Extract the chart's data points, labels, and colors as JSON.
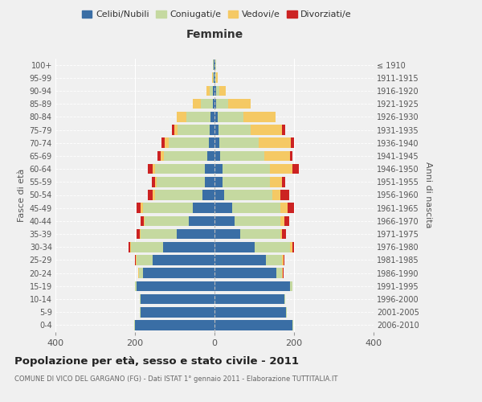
{
  "age_groups": [
    "0-4",
    "5-9",
    "10-14",
    "15-19",
    "20-24",
    "25-29",
    "30-34",
    "35-39",
    "40-44",
    "45-49",
    "50-54",
    "55-59",
    "60-64",
    "65-69",
    "70-74",
    "75-79",
    "80-84",
    "85-89",
    "90-94",
    "95-99",
    "100+"
  ],
  "birth_years": [
    "2006-2010",
    "2001-2005",
    "1996-2000",
    "1991-1995",
    "1986-1990",
    "1981-1985",
    "1976-1980",
    "1971-1975",
    "1966-1970",
    "1961-1965",
    "1956-1960",
    "1951-1955",
    "1946-1950",
    "1941-1945",
    "1936-1940",
    "1931-1935",
    "1926-1930",
    "1921-1925",
    "1916-1920",
    "1911-1915",
    "≤ 1910"
  ],
  "male": {
    "celibi": [
      200,
      185,
      185,
      195,
      180,
      155,
      130,
      95,
      65,
      55,
      30,
      25,
      25,
      18,
      15,
      12,
      10,
      5,
      5,
      2,
      2
    ],
    "coniugati": [
      2,
      2,
      2,
      5,
      10,
      40,
      80,
      90,
      110,
      125,
      120,
      120,
      125,
      110,
      100,
      80,
      60,
      30,
      8,
      3,
      2
    ],
    "vedovi": [
      0,
      0,
      0,
      1,
      1,
      2,
      2,
      3,
      3,
      5,
      5,
      5,
      5,
      8,
      10,
      10,
      25,
      20,
      8,
      2,
      1
    ],
    "divorziati": [
      0,
      0,
      0,
      0,
      1,
      3,
      5,
      8,
      8,
      10,
      12,
      8,
      12,
      8,
      8,
      5,
      0,
      0,
      0,
      0,
      0
    ]
  },
  "female": {
    "nubili": [
      195,
      180,
      175,
      190,
      155,
      130,
      100,
      65,
      50,
      45,
      25,
      20,
      20,
      15,
      12,
      10,
      8,
      5,
      5,
      2,
      2
    ],
    "coniugate": [
      2,
      2,
      2,
      5,
      15,
      40,
      90,
      100,
      115,
      120,
      120,
      120,
      120,
      110,
      100,
      80,
      65,
      30,
      8,
      3,
      2
    ],
    "vedove": [
      0,
      0,
      0,
      1,
      2,
      3,
      5,
      5,
      10,
      18,
      20,
      30,
      55,
      65,
      80,
      80,
      80,
      55,
      15,
      3,
      1
    ],
    "divorziate": [
      0,
      0,
      0,
      0,
      1,
      3,
      5,
      10,
      12,
      18,
      22,
      8,
      18,
      5,
      8,
      8,
      0,
      0,
      0,
      0,
      0
    ]
  },
  "colors": {
    "celibi": "#3a6ea5",
    "coniugati": "#c5d9a0",
    "vedovi": "#f5c964",
    "divorziati": "#cc2222"
  },
  "title": "Popolazione per età, sesso e stato civile - 2011",
  "subtitle": "COMUNE DI VICO DEL GARGANO (FG) - Dati ISTAT 1° gennaio 2011 - Elaborazione TUTTITALIA.IT",
  "xlabel_right": "Femmine",
  "ylabel_left": "Fasce di età",
  "ylabel_right": "Anni di nascita",
  "xlim": 400,
  "background_color": "#f0f0f0"
}
